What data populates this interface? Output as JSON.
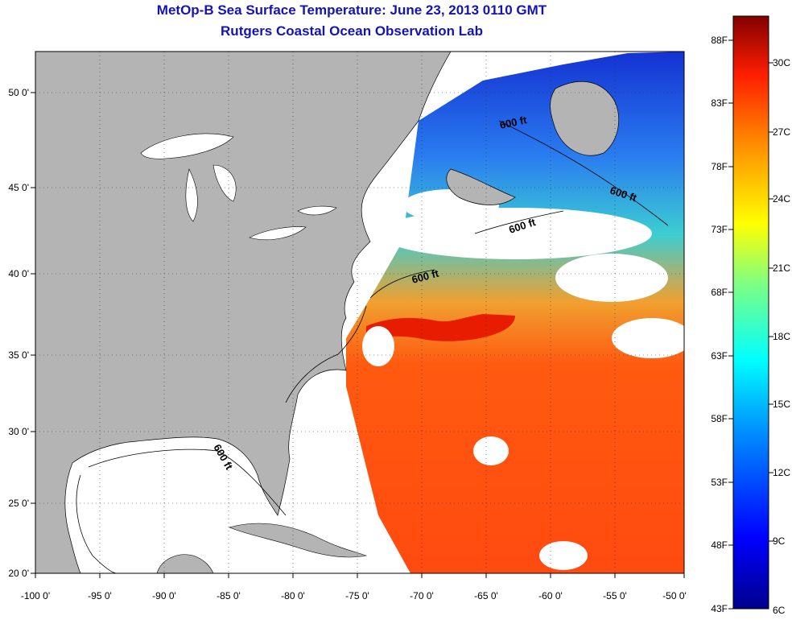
{
  "title": "MetOp-B Sea Surface Temperature:  June 23, 2013 0110 GMT",
  "subtitle": "Rutgers Coastal Ocean Observation Lab",
  "lat_labels": [
    "50 0'",
    "45 0'",
    "40 0'",
    "35 0'",
    "30 0'",
    "25 0'",
    "20 0'"
  ],
  "lon_labels": [
    "-100 0'",
    "-95 0'",
    "-90 0'",
    "-85 0'",
    "-80 0'",
    "-75 0'",
    "-70 0'",
    "-65 0'",
    "-60 0'",
    "-55 0'",
    "-50 0'"
  ],
  "isobath_label": "600 ft",
  "colorbar": {
    "fahrenheit": [
      "88F",
      "83F",
      "78F",
      "73F",
      "68F",
      "63F",
      "58F",
      "53F",
      "48F",
      "43F"
    ],
    "celsius": [
      "30C",
      "27C",
      "24C",
      "21C",
      "18C",
      "15C",
      "12C",
      "9C",
      "6C"
    ]
  },
  "colors": {
    "title": "#1414b4",
    "land": "#b4b4b4",
    "no_data": "#ffffff",
    "cold": "#00008c",
    "warm": "#ff3c00",
    "hot": "#820000"
  }
}
